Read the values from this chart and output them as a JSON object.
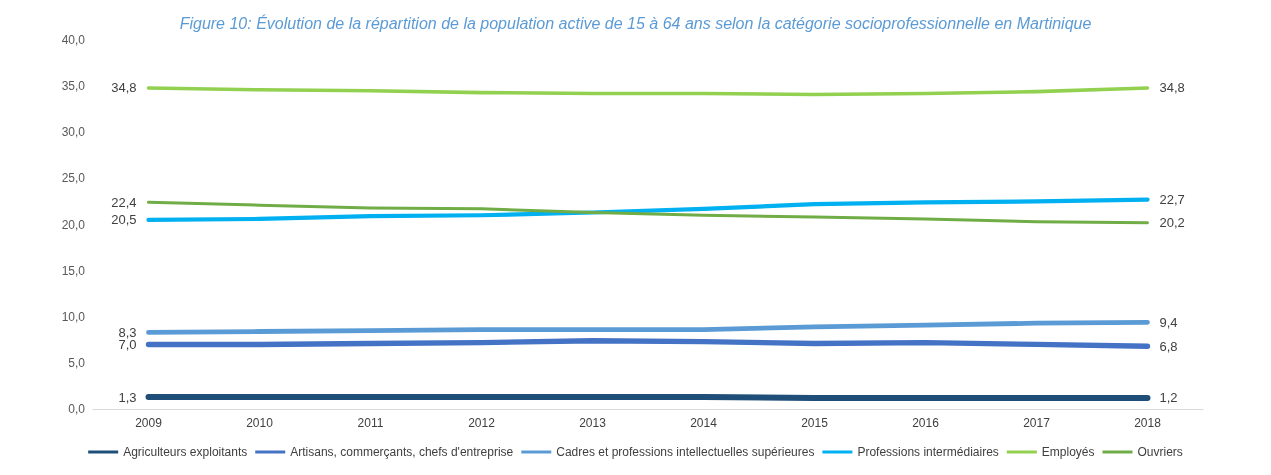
{
  "chart_data": {
    "type": "line",
    "title": "Figure 10: Évolution de la répartition de la population active de 15 à 64 ans selon la catégorie socioprofessionnelle en Martinique",
    "categories": [
      "2009",
      "2010",
      "2011",
      "2012",
      "2013",
      "2014",
      "2015",
      "2016",
      "2017",
      "2018"
    ],
    "series": [
      {
        "name": "Agriculteurs exploitants",
        "color": "#1f4e79",
        "values": [
          1.3,
          1.3,
          1.3,
          1.3,
          1.3,
          1.3,
          1.2,
          1.2,
          1.2,
          1.2
        ],
        "value_labels": [
          "1,3",
          null,
          null,
          null,
          null,
          null,
          null,
          null,
          null,
          "1,2"
        ]
      },
      {
        "name": "Artisans, commerçants, chefs d'entreprise",
        "color": "#4472c4",
        "values": [
          7.0,
          7.0,
          7.1,
          7.2,
          7.4,
          7.3,
          7.1,
          7.2,
          7.0,
          6.8
        ],
        "value_labels": [
          "7,0",
          null,
          null,
          null,
          null,
          null,
          null,
          null,
          null,
          "6,8"
        ]
      },
      {
        "name": "Cadres et professions intellectuelles supérieures",
        "color": "#5b9bd5",
        "values": [
          8.3,
          8.4,
          8.5,
          8.6,
          8.6,
          8.6,
          8.9,
          9.1,
          9.3,
          9.4
        ],
        "value_labels": [
          "8,3",
          null,
          null,
          null,
          null,
          null,
          null,
          null,
          null,
          "9,4"
        ]
      },
      {
        "name": "Professions intermédiaires",
        "color": "#00b0f0",
        "values": [
          20.5,
          20.6,
          20.9,
          21.0,
          21.3,
          21.7,
          22.2,
          22.4,
          22.5,
          22.7
        ],
        "value_labels": [
          "20,5",
          null,
          null,
          null,
          null,
          null,
          null,
          null,
          null,
          "22,7"
        ]
      },
      {
        "name": "Employés",
        "color": "#92d050",
        "values": [
          34.8,
          34.6,
          34.5,
          34.3,
          34.2,
          34.2,
          34.1,
          34.2,
          34.4,
          34.8
        ],
        "value_labels": [
          "34,8",
          null,
          null,
          null,
          null,
          null,
          null,
          null,
          null,
          "34,8"
        ]
      },
      {
        "name": "Ouvriers",
        "color": "#70ad47",
        "values": [
          22.4,
          22.1,
          21.8,
          21.7,
          21.3,
          21.0,
          20.8,
          20.6,
          20.3,
          20.2
        ],
        "value_labels": [
          "22,4",
          null,
          null,
          null,
          null,
          null,
          null,
          null,
          null,
          "20,2"
        ]
      }
    ],
    "ylim": [
      0,
      40
    ],
    "yticks": [
      {
        "value": 0,
        "label": "0,0"
      },
      {
        "value": 5,
        "label": "5,0"
      },
      {
        "value": 10,
        "label": "10,0"
      },
      {
        "value": 15,
        "label": "15,0"
      },
      {
        "value": 20,
        "label": "20,0"
      },
      {
        "value": 25,
        "label": "25,0"
      },
      {
        "value": 30,
        "label": "30,0"
      },
      {
        "value": 35,
        "label": "35,0"
      },
      {
        "value": 40,
        "label": "40,0"
      }
    ],
    "legend": "bottom",
    "marker": "none",
    "line_style": "solid"
  }
}
